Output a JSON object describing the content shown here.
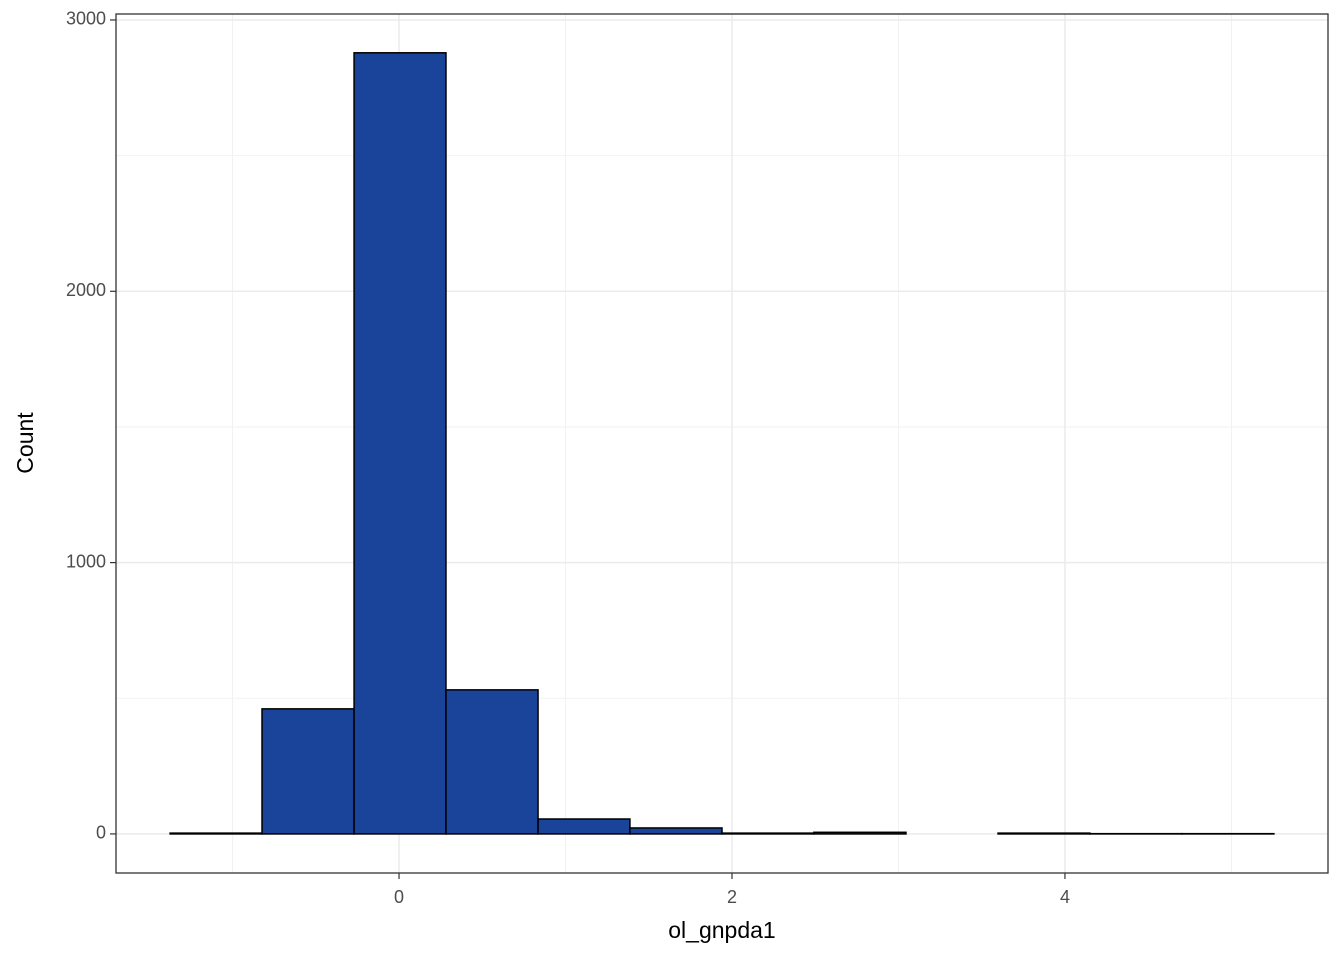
{
  "chart_data": {
    "type": "histogram",
    "x_label": "ol_gnpda1",
    "y_label": "Count",
    "bins": [
      -1.375,
      -0.823,
      -0.27,
      0.282,
      0.835,
      1.387,
      1.94,
      2.492,
      3.045,
      3.598,
      4.15,
      4.703,
      5.255
    ],
    "counts": [
      3,
      461,
      2879,
      531,
      55,
      22,
      3,
      6,
      0,
      3,
      1,
      1
    ],
    "color": "#1a4499",
    "edge_color": "#000000",
    "xlim": [
      -1.7,
      5.58
    ],
    "ylim": [
      -144,
      3022
    ],
    "xticks": [
      0,
      2,
      4
    ],
    "yticks": [
      0,
      1000,
      2000,
      3000
    ],
    "minor_xticks": [
      -1,
      1,
      3,
      5
    ],
    "minor_yticks": [
      500,
      1500,
      2500
    ],
    "grid": true
  }
}
